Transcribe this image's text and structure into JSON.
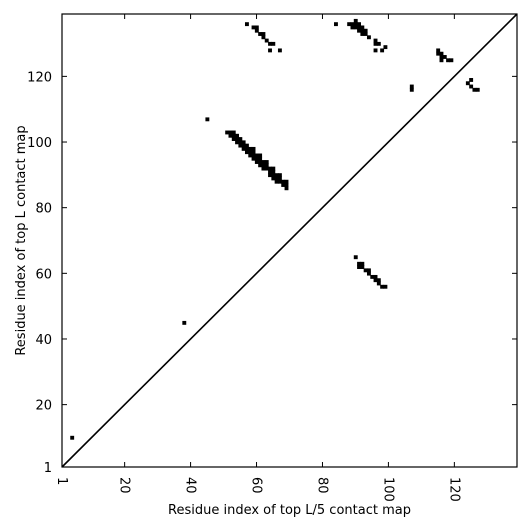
{
  "chart_data": {
    "type": "heatmap",
    "subtype": "contact-map-scatter",
    "title": "",
    "xlabel": "Residue index of top L/5 contact map",
    "ylabel": "Residue index of top L contact map",
    "xlim": [
      1,
      139
    ],
    "ylim": [
      1,
      139
    ],
    "x_ticks": [
      1,
      20,
      40,
      60,
      80,
      100,
      120
    ],
    "y_ticks": [
      1,
      20,
      40,
      60,
      80,
      100,
      120
    ],
    "grid": false,
    "legend": "none",
    "diagonal_line": true,
    "marker_color": "#000000",
    "series": [
      {
        "contacts": [
          [
            4,
            10
          ],
          [
            38,
            45
          ],
          [
            45,
            107
          ],
          [
            51,
            103
          ],
          [
            52,
            102
          ],
          [
            52,
            103
          ],
          [
            53,
            101
          ],
          [
            53,
            102
          ],
          [
            53,
            103
          ],
          [
            54,
            100
          ],
          [
            54,
            101
          ],
          [
            54,
            102
          ],
          [
            55,
            99
          ],
          [
            55,
            100
          ],
          [
            55,
            101
          ],
          [
            56,
            98
          ],
          [
            56,
            99
          ],
          [
            56,
            100
          ],
          [
            57,
            97
          ],
          [
            57,
            98
          ],
          [
            57,
            99
          ],
          [
            58,
            96
          ],
          [
            58,
            97
          ],
          [
            58,
            98
          ],
          [
            59,
            95
          ],
          [
            59,
            96
          ],
          [
            59,
            97
          ],
          [
            59,
            98
          ],
          [
            60,
            94
          ],
          [
            60,
            95
          ],
          [
            60,
            96
          ],
          [
            61,
            93
          ],
          [
            61,
            94
          ],
          [
            61,
            95
          ],
          [
            61,
            96
          ],
          [
            62,
            92
          ],
          [
            62,
            93
          ],
          [
            62,
            94
          ],
          [
            63,
            92
          ],
          [
            63,
            93
          ],
          [
            63,
            94
          ],
          [
            64,
            90
          ],
          [
            64,
            91
          ],
          [
            64,
            92
          ],
          [
            65,
            89
          ],
          [
            65,
            90
          ],
          [
            65,
            91
          ],
          [
            65,
            92
          ],
          [
            66,
            88
          ],
          [
            66,
            89
          ],
          [
            66,
            90
          ],
          [
            67,
            88
          ],
          [
            67,
            89
          ],
          [
            67,
            90
          ],
          [
            68,
            87
          ],
          [
            68,
            88
          ],
          [
            69,
            86
          ],
          [
            69,
            87
          ],
          [
            69,
            88
          ],
          [
            57,
            136
          ],
          [
            59,
            135
          ],
          [
            60,
            134
          ],
          [
            60,
            135
          ],
          [
            61,
            133
          ],
          [
            62,
            132
          ],
          [
            62,
            133
          ],
          [
            63,
            131
          ],
          [
            64,
            130
          ],
          [
            65,
            130
          ],
          [
            64,
            128
          ],
          [
            67,
            128
          ],
          [
            84,
            136
          ],
          [
            88,
            136
          ],
          [
            89,
            135
          ],
          [
            89,
            136
          ],
          [
            90,
            135
          ],
          [
            90,
            136
          ],
          [
            90,
            137
          ],
          [
            91,
            134
          ],
          [
            91,
            135
          ],
          [
            91,
            136
          ],
          [
            92,
            133
          ],
          [
            92,
            134
          ],
          [
            92,
            135
          ],
          [
            93,
            133
          ],
          [
            93,
            134
          ],
          [
            94,
            132
          ],
          [
            96,
            130
          ],
          [
            96,
            131
          ],
          [
            97,
            130
          ],
          [
            96,
            128
          ],
          [
            98,
            128
          ],
          [
            99,
            129
          ],
          [
            107,
            116
          ],
          [
            107,
            117
          ],
          [
            115,
            127
          ],
          [
            115,
            128
          ],
          [
            116,
            125
          ],
          [
            116,
            126
          ],
          [
            116,
            127
          ],
          [
            117,
            126
          ],
          [
            118,
            125
          ],
          [
            119,
            125
          ],
          [
            124,
            118
          ],
          [
            125,
            117
          ],
          [
            125,
            119
          ],
          [
            126,
            116
          ],
          [
            127,
            116
          ],
          [
            90,
            65
          ],
          [
            91,
            62
          ],
          [
            91,
            63
          ],
          [
            92,
            62
          ],
          [
            92,
            63
          ],
          [
            93,
            61
          ],
          [
            94,
            60
          ],
          [
            94,
            61
          ],
          [
            95,
            59
          ],
          [
            96,
            58
          ],
          [
            96,
            59
          ],
          [
            97,
            58
          ],
          [
            97,
            57
          ],
          [
            98,
            56
          ],
          [
            99,
            56
          ]
        ]
      }
    ]
  }
}
